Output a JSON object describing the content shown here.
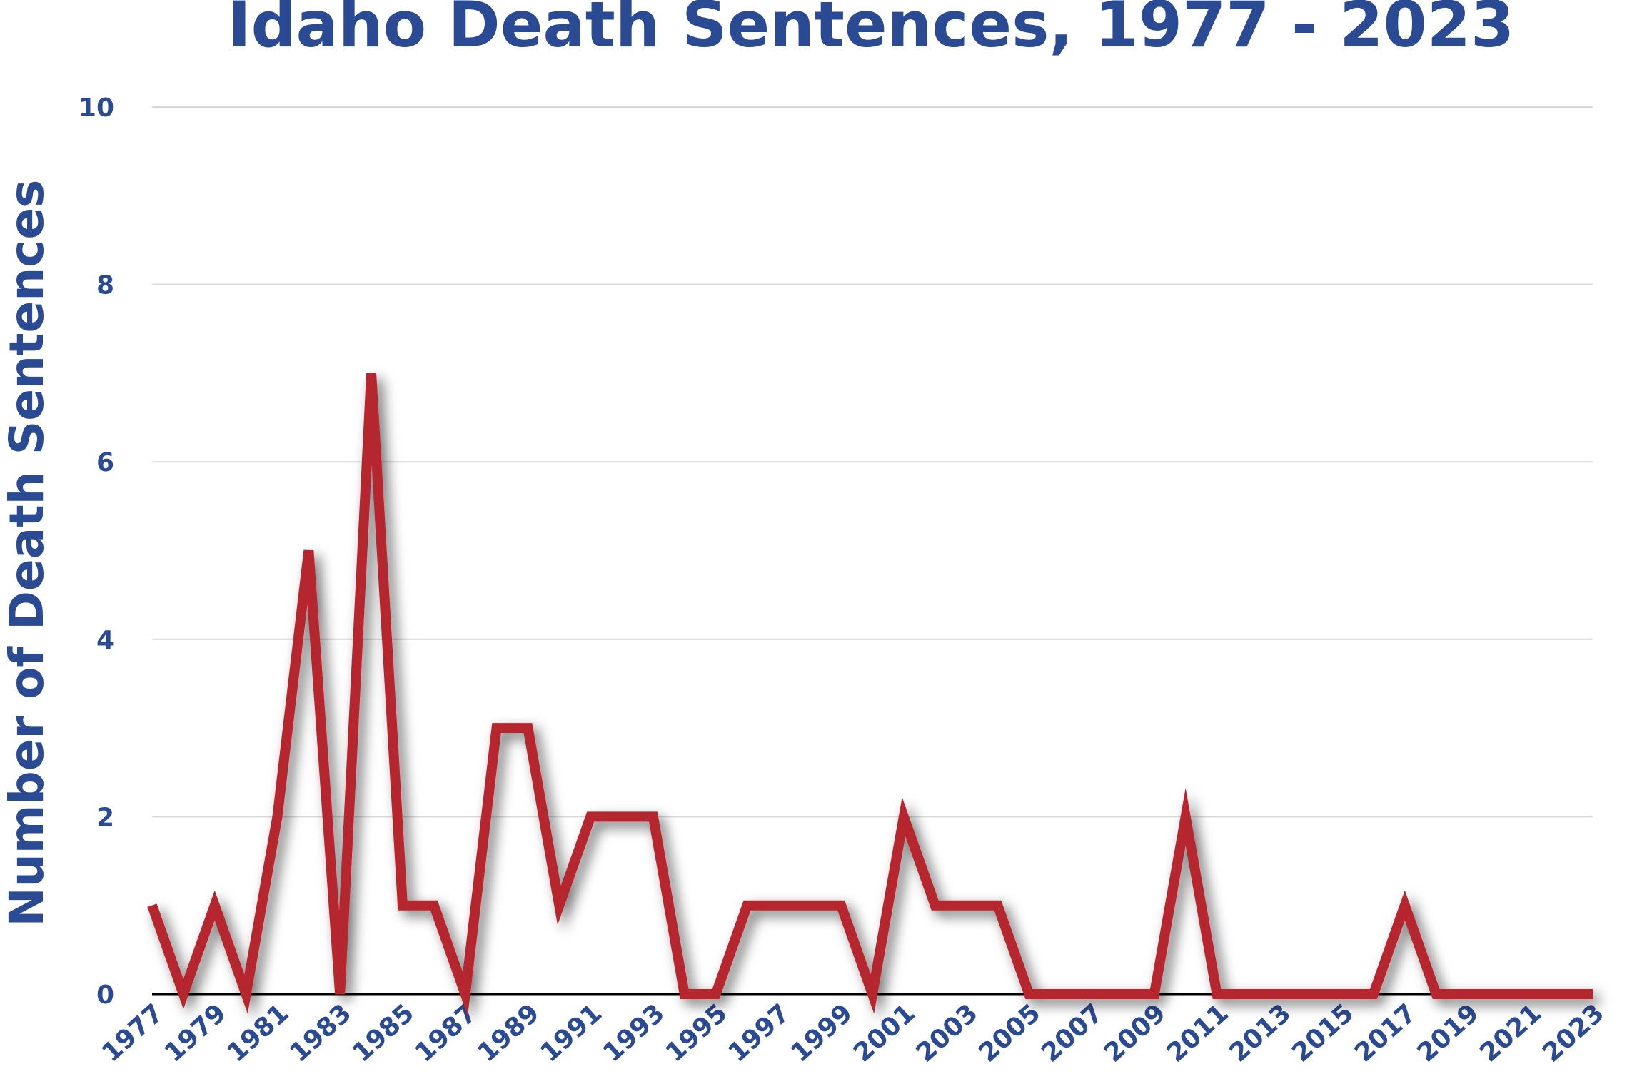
{
  "chart_data": {
    "type": "line",
    "title": "Idaho Death Sentences, 1977 - 2023",
    "y_label": "Number of Death Sentences",
    "categories": [
      "1977",
      null,
      "1979",
      null,
      "1981",
      null,
      "1983",
      null,
      "1985",
      null,
      "1987",
      null,
      "1989",
      null,
      "1991",
      null,
      "1993",
      null,
      "1995",
      null,
      "1997",
      null,
      "1999",
      null,
      "2001",
      null,
      "2003",
      null,
      "2005",
      null,
      "2007",
      null,
      "2009",
      null,
      "2011",
      null,
      "2013",
      null,
      "2015",
      null,
      "2017",
      null,
      "2019",
      null,
      "2021",
      null,
      "2023"
    ],
    "values": [
      1,
      0,
      1,
      0,
      2,
      5,
      0,
      7,
      1,
      1,
      0,
      3,
      3,
      1,
      2,
      2,
      2,
      0,
      0,
      1,
      1,
      1,
      1,
      0,
      2,
      1,
      1,
      1,
      0,
      0,
      0,
      0,
      0,
      2,
      0,
      0,
      0,
      0,
      0,
      0,
      1,
      0,
      0,
      0,
      0,
      0,
      0
    ],
    "color": "#b5272d",
    "ylim": [
      0,
      10
    ],
    "yticks": [
      0,
      2,
      4,
      6,
      8,
      10
    ],
    "grid": true
  }
}
